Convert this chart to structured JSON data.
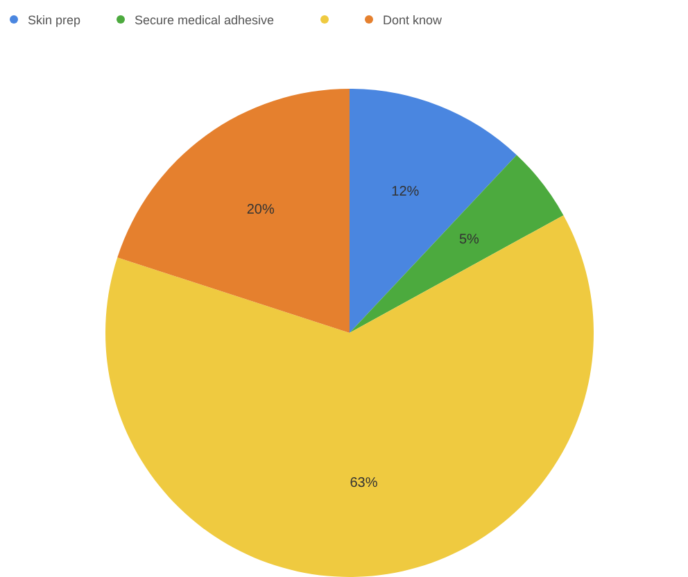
{
  "chart_data": {
    "type": "pie",
    "categories": [
      "Skin prep",
      "Secure medical adhesive",
      null,
      "Dont know"
    ],
    "values": [
      12,
      5,
      63,
      20
    ],
    "colors": [
      "#4a86e0",
      "#4caa3e",
      "#efca40",
      "#e5802e"
    ],
    "value_labels": [
      "12%",
      "5%",
      "63%",
      "20%"
    ],
    "legend": "top"
  }
}
